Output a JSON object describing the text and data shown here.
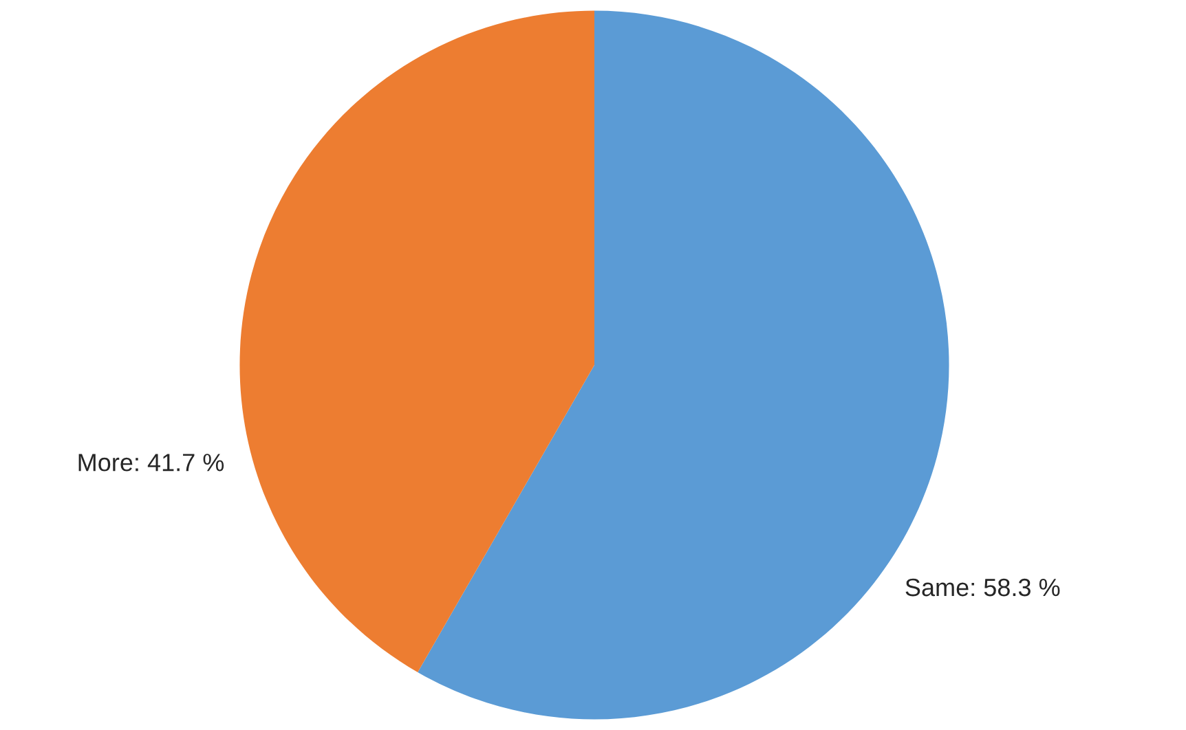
{
  "chart_data": {
    "type": "pie",
    "categories": [
      "Same",
      "More"
    ],
    "values": [
      58.3,
      41.7
    ],
    "colors": [
      "#5b9bd5",
      "#ed7d31"
    ],
    "value_labels": [
      "58.3 %",
      "41.7 %"
    ],
    "legend": false
  }
}
